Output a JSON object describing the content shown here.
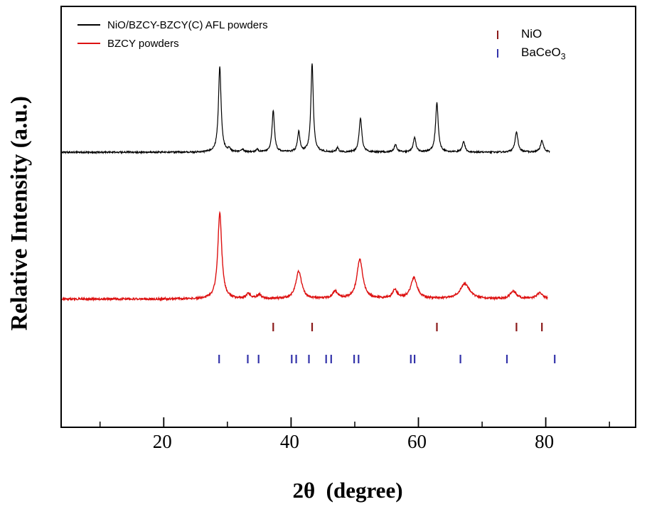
{
  "axes": {
    "xlabel": "2θ  (degree)",
    "ylabel": "Relative Intensity (a.u.)"
  },
  "legend": {
    "entries": [
      {
        "label": "NiO/BZCY-BZCY(C) AFL powders",
        "color": "#000000"
      },
      {
        "label": "BZCY powders",
        "color": "#dd1111"
      }
    ]
  },
  "phase_legend": {
    "entries": [
      {
        "label_main": "NiO",
        "label_sub": "",
        "color": "#8b1a1a"
      },
      {
        "label_main": "BaCeO",
        "label_sub": "3",
        "color": "#3333aa"
      }
    ]
  },
  "chart_data": {
    "type": "line",
    "title": "",
    "xlabel": "2θ  (degree)",
    "ylabel": "Relative Intensity (a.u.)",
    "xlim": [
      4,
      94
    ],
    "xticks": [
      20,
      40,
      60,
      80
    ],
    "xticks_minor": [
      10,
      30,
      50,
      70,
      90
    ],
    "grid": false,
    "legend_position": "top-left",
    "series": [
      {
        "name": "NiO/BZCY-BZCY(C) AFL powders",
        "color": "#000000",
        "line_width": 1.2,
        "baseline": 0.654,
        "noise": 1.1,
        "xrange": [
          4,
          80.6
        ],
        "peaks": [
          {
            "c": 28.8,
            "h": 0.205,
            "w": 0.5
          },
          {
            "c": 30.3,
            "h": 0.008,
            "w": 0.4
          },
          {
            "c": 32.4,
            "h": 0.006,
            "w": 0.4
          },
          {
            "c": 34.7,
            "h": 0.006,
            "w": 0.4
          },
          {
            "c": 37.2,
            "h": 0.1,
            "w": 0.45
          },
          {
            "c": 41.2,
            "h": 0.048,
            "w": 0.45
          },
          {
            "c": 43.3,
            "h": 0.212,
            "w": 0.45
          },
          {
            "c": 47.3,
            "h": 0.01,
            "w": 0.4
          },
          {
            "c": 50.9,
            "h": 0.082,
            "w": 0.5
          },
          {
            "c": 56.4,
            "h": 0.018,
            "w": 0.5
          },
          {
            "c": 59.4,
            "h": 0.034,
            "w": 0.5
          },
          {
            "c": 62.9,
            "h": 0.118,
            "w": 0.5
          },
          {
            "c": 67.1,
            "h": 0.026,
            "w": 0.5
          },
          {
            "c": 75.4,
            "h": 0.048,
            "w": 0.55
          },
          {
            "c": 79.4,
            "h": 0.028,
            "w": 0.55
          }
        ]
      },
      {
        "name": "BZCY powders",
        "color": "#dd1111",
        "line_width": 1.4,
        "baseline": 0.304,
        "noise": 1.4,
        "xrange": [
          4,
          80.3
        ],
        "peaks": [
          {
            "c": 28.8,
            "h": 0.205,
            "w": 0.75
          },
          {
            "c": 33.3,
            "h": 0.012,
            "w": 0.8
          },
          {
            "c": 35.0,
            "h": 0.01,
            "w": 0.8
          },
          {
            "c": 41.2,
            "h": 0.066,
            "w": 1.1
          },
          {
            "c": 46.9,
            "h": 0.018,
            "w": 0.9
          },
          {
            "c": 50.8,
            "h": 0.094,
            "w": 1.1
          },
          {
            "c": 56.3,
            "h": 0.02,
            "w": 0.9
          },
          {
            "c": 59.3,
            "h": 0.05,
            "w": 1.2
          },
          {
            "c": 67.3,
            "h": 0.036,
            "w": 1.8
          },
          {
            "c": 74.9,
            "h": 0.018,
            "w": 1.2
          },
          {
            "c": 79.0,
            "h": 0.014,
            "w": 1.2
          }
        ]
      }
    ],
    "references": [
      {
        "name": "NiO",
        "color": "#8b1a1a",
        "positions": [
          37.2,
          43.3,
          62.9,
          75.4,
          79.4
        ]
      },
      {
        "name": "BaCeO3",
        "color": "#3333aa",
        "positions": [
          28.7,
          33.2,
          34.9,
          40.1,
          40.8,
          42.8,
          45.5,
          46.3,
          49.9,
          50.6,
          58.8,
          59.4,
          66.6,
          73.9,
          81.4
        ]
      }
    ]
  }
}
